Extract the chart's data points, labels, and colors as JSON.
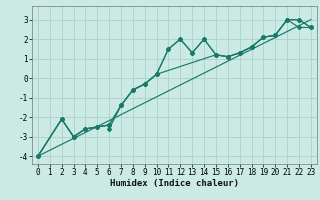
{
  "title": "",
  "xlabel": "Humidex (Indice chaleur)",
  "ylabel": "",
  "bg_color": "#cceae4",
  "grid_color": "#aed4cc",
  "line_color": "#1a7a6a",
  "xlim": [
    -0.5,
    23.5
  ],
  "ylim": [
    -4.4,
    3.7
  ],
  "xticks": [
    0,
    1,
    2,
    3,
    4,
    5,
    6,
    7,
    8,
    9,
    10,
    11,
    12,
    13,
    14,
    15,
    16,
    17,
    18,
    19,
    20,
    21,
    22,
    23
  ],
  "yticks": [
    -4,
    -3,
    -2,
    -1,
    0,
    1,
    2,
    3
  ],
  "series1_x": [
    0,
    2,
    3,
    4,
    5,
    6,
    6,
    7,
    8,
    9,
    10,
    11,
    12,
    13,
    14,
    15,
    16,
    17,
    18,
    19,
    20,
    21,
    22,
    23
  ],
  "series1_y": [
    -4.0,
    -2.1,
    -3.0,
    -2.6,
    -2.5,
    -2.4,
    -2.6,
    -1.4,
    -0.6,
    -0.3,
    0.2,
    1.5,
    2.0,
    1.3,
    2.0,
    1.2,
    1.1,
    1.3,
    1.6,
    2.1,
    2.2,
    3.0,
    2.6,
    2.6
  ],
  "series2_x": [
    0,
    2,
    3,
    4,
    5,
    6,
    7,
    8,
    9,
    10,
    11,
    12,
    13,
    14,
    15,
    16,
    17,
    18,
    19,
    20,
    21,
    22,
    23
  ],
  "series2_y": [
    -4.0,
    -2.1,
    -3.0,
    -2.6,
    -2.5,
    -2.4,
    -1.4,
    -0.6,
    -0.3,
    0.2,
    1.5,
    2.0,
    1.3,
    2.0,
    1.2,
    1.1,
    1.3,
    1.6,
    2.1,
    2.2,
    3.0,
    3.0,
    2.6
  ],
  "series3_x": [
    0,
    2,
    3,
    4,
    5,
    6,
    7,
    8,
    9,
    10,
    15,
    16,
    17,
    18,
    19,
    20,
    21,
    22,
    23
  ],
  "series3_y": [
    -4.0,
    -2.1,
    -3.0,
    -2.6,
    -2.5,
    -2.4,
    -1.4,
    -0.6,
    -0.3,
    0.2,
    1.2,
    1.1,
    1.3,
    1.6,
    2.1,
    2.2,
    3.0,
    3.0,
    2.6
  ],
  "series4_x": [
    0,
    23
  ],
  "series4_y": [
    -4.0,
    3.0
  ],
  "xlabel_fontsize": 6.5,
  "tick_fontsize": 5.5
}
